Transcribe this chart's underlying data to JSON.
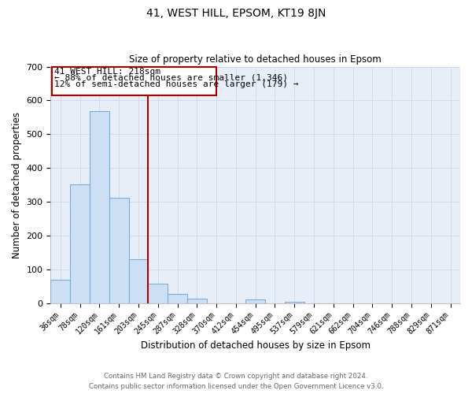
{
  "title": "41, WEST HILL, EPSOM, KT19 8JN",
  "subtitle": "Size of property relative to detached houses in Epsom",
  "xlabel": "Distribution of detached houses by size in Epsom",
  "ylabel": "Number of detached properties",
  "bar_labels": [
    "36sqm",
    "78sqm",
    "120sqm",
    "161sqm",
    "203sqm",
    "245sqm",
    "287sqm",
    "328sqm",
    "370sqm",
    "412sqm",
    "454sqm",
    "495sqm",
    "537sqm",
    "579sqm",
    "621sqm",
    "662sqm",
    "704sqm",
    "746sqm",
    "788sqm",
    "829sqm",
    "871sqm"
  ],
  "bar_values": [
    70,
    352,
    568,
    312,
    130,
    58,
    27,
    14,
    0,
    0,
    10,
    0,
    4,
    0,
    0,
    0,
    0,
    0,
    0,
    0,
    0
  ],
  "bar_color": "#ccdff5",
  "bar_edge_color": "#7aafd4",
  "ylim": [
    0,
    700
  ],
  "yticks": [
    0,
    100,
    200,
    300,
    400,
    500,
    600,
    700
  ],
  "property_line_x": 4.5,
  "property_line_color": "#aa0000",
  "annotation_line1": "41 WEST HILL: 218sqm",
  "annotation_line2": "← 88% of detached houses are smaller (1,346)",
  "annotation_line3": "12% of semi-detached houses are larger (179) →",
  "footer_line1": "Contains HM Land Registry data © Crown copyright and database right 2024.",
  "footer_line2": "Contains public sector information licensed under the Open Government Licence v3.0.",
  "grid_color": "#d0dceb",
  "background_color": "#e8eef8"
}
